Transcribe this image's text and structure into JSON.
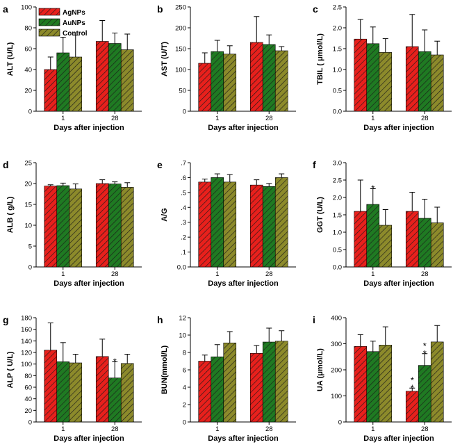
{
  "series_info": [
    {
      "name": "AgNPs",
      "color": "#e8201c"
    },
    {
      "name": "AuNPs",
      "color": "#1f7a22"
    },
    {
      "name": "Control",
      "color": "#8c8a2b"
    }
  ],
  "xlabel": "Days after injection",
  "categories": [
    "1",
    "28"
  ],
  "chart_data": [
    {
      "type": "bar",
      "letter": "a",
      "ylabel": "ALT (U/L)",
      "ylim": [
        0,
        100
      ],
      "ticks": [
        "0",
        "20",
        "40",
        "60",
        "80",
        "100"
      ],
      "tick_values": [
        0,
        20,
        40,
        60,
        80,
        100
      ],
      "series": [
        {
          "name": "AgNPs",
          "values": [
            40,
            67
          ],
          "errors": [
            12,
            20
          ]
        },
        {
          "name": "AuNPs",
          "values": [
            56,
            65
          ],
          "errors": [
            15,
            10
          ]
        },
        {
          "name": "Control",
          "values": [
            52,
            59
          ],
          "errors": [
            21,
            15
          ]
        }
      ],
      "annotations": []
    },
    {
      "type": "bar",
      "letter": "b",
      "ylabel": "AST (U/T)",
      "ylim": [
        0,
        250
      ],
      "ticks": [
        "0",
        "50",
        "100",
        "150",
        "200",
        "250"
      ],
      "tick_values": [
        0,
        50,
        100,
        150,
        200,
        250
      ],
      "series": [
        {
          "name": "AgNPs",
          "values": [
            115,
            165
          ],
          "errors": [
            25,
            62
          ]
        },
        {
          "name": "AuNPs",
          "values": [
            143,
            160
          ],
          "errors": [
            27,
            23
          ]
        },
        {
          "name": "Control",
          "values": [
            137,
            145
          ],
          "errors": [
            20,
            10
          ]
        }
      ],
      "annotations": []
    },
    {
      "type": "bar",
      "letter": "c",
      "ylabel": "TBIL ( μmol/L)",
      "ylim": [
        0,
        2.5
      ],
      "ticks": [
        "0.0",
        "0.5",
        "1.0",
        "1.5",
        "2.0",
        "2.5"
      ],
      "tick_values": [
        0,
        0.5,
        1,
        1.5,
        2,
        2.5
      ],
      "series": [
        {
          "name": "AgNPs",
          "values": [
            1.73,
            1.55
          ],
          "errors": [
            0.47,
            0.77
          ]
        },
        {
          "name": "AuNPs",
          "values": [
            1.62,
            1.43
          ],
          "errors": [
            0.4,
            0.52
          ]
        },
        {
          "name": "Control",
          "values": [
            1.41,
            1.35
          ],
          "errors": [
            0.33,
            0.33
          ]
        }
      ],
      "annotations": []
    },
    {
      "type": "bar",
      "letter": "d",
      "ylabel": "ALB ( g/L)",
      "ylim": [
        0,
        25
      ],
      "ticks": [
        "0",
        "5",
        "10",
        "15",
        "20",
        "25"
      ],
      "tick_values": [
        0,
        5,
        10,
        15,
        20,
        25
      ],
      "series": [
        {
          "name": "AgNPs",
          "values": [
            19.4,
            20.0
          ],
          "errors": [
            0.3,
            0.9
          ]
        },
        {
          "name": "AuNPs",
          "values": [
            19.5,
            19.9
          ],
          "errors": [
            0.6,
            0.5
          ]
        },
        {
          "name": "Control",
          "values": [
            18.7,
            19.1
          ],
          "errors": [
            1.2,
            1.1
          ]
        }
      ],
      "annotations": []
    },
    {
      "type": "bar",
      "letter": "e",
      "ylabel": "A/G",
      "ylim": [
        0,
        0.7
      ],
      "ticks": [
        "0.0",
        ".1",
        ".2",
        ".3",
        ".4",
        ".5",
        ".6",
        ".7"
      ],
      "tick_values": [
        0,
        0.1,
        0.2,
        0.3,
        0.4,
        0.5,
        0.6,
        0.7
      ],
      "series": [
        {
          "name": "AgNPs",
          "values": [
            0.57,
            0.55
          ],
          "errors": [
            0.02,
            0.035
          ]
        },
        {
          "name": "AuNPs",
          "values": [
            0.6,
            0.54
          ],
          "errors": [
            0.025,
            0.02
          ]
        },
        {
          "name": "Control",
          "values": [
            0.57,
            0.6
          ],
          "errors": [
            0.05,
            0.025
          ]
        }
      ],
      "annotations": []
    },
    {
      "type": "bar",
      "letter": "f",
      "ylabel": "GGT (U/L)",
      "ylim": [
        0,
        3.0
      ],
      "ticks": [
        "0.0",
        "0.5",
        "1.0",
        "1.5",
        "2.0",
        "2.5",
        "3.0"
      ],
      "tick_values": [
        0,
        0.5,
        1,
        1.5,
        2,
        2.5,
        3
      ],
      "series": [
        {
          "name": "AgNPs",
          "values": [
            1.6,
            1.6
          ],
          "errors": [
            0.9,
            0.55
          ]
        },
        {
          "name": "AuNPs",
          "values": [
            1.8,
            1.4
          ],
          "errors": [
            0.45,
            0.55
          ]
        },
        {
          "name": "Control",
          "values": [
            1.2,
            1.27
          ],
          "errors": [
            0.45,
            0.45
          ]
        }
      ],
      "annotations": [
        {
          "text": "*",
          "category": 0,
          "series": 1
        }
      ]
    },
    {
      "type": "bar",
      "letter": "g",
      "ylabel": "ALP ( U/L)",
      "ylim": [
        0,
        180
      ],
      "ticks": [
        "0",
        "20",
        "40",
        "60",
        "80",
        "100",
        "120",
        "140",
        "160",
        "180"
      ],
      "tick_values": [
        0,
        20,
        40,
        60,
        80,
        100,
        120,
        140,
        160,
        180
      ],
      "series": [
        {
          "name": "AgNPs",
          "values": [
            124,
            113
          ],
          "errors": [
            47,
            30
          ]
        },
        {
          "name": "AuNPs",
          "values": [
            104,
            76
          ],
          "errors": [
            33,
            28
          ]
        },
        {
          "name": "Control",
          "values": [
            102,
            101
          ],
          "errors": [
            15,
            16
          ]
        }
      ],
      "annotations": [
        {
          "text": "*",
          "category": 1,
          "series": 1
        }
      ]
    },
    {
      "type": "bar",
      "letter": "h",
      "ylabel": "BUN(mmol/L)",
      "ylim": [
        0,
        12
      ],
      "ticks": [
        "0",
        "2",
        "4",
        "6",
        "8",
        "10",
        "12"
      ],
      "tick_values": [
        0,
        2,
        4,
        6,
        8,
        10,
        12
      ],
      "series": [
        {
          "name": "AgNPs",
          "values": [
            7.0,
            7.9
          ],
          "errors": [
            0.7,
            0.9
          ]
        },
        {
          "name": "AuNPs",
          "values": [
            7.5,
            9.2
          ],
          "errors": [
            1.4,
            1.6
          ]
        },
        {
          "name": "Control",
          "values": [
            9.1,
            9.3
          ],
          "errors": [
            1.3,
            1.2
          ]
        }
      ],
      "annotations": []
    },
    {
      "type": "bar",
      "letter": "i",
      "ylabel": "UA (μmol/L)",
      "ylim": [
        0,
        400
      ],
      "ticks": [
        "0",
        "100",
        "200",
        "300",
        "400"
      ],
      "tick_values": [
        0,
        100,
        200,
        300,
        400
      ],
      "series": [
        {
          "name": "AgNPs",
          "values": [
            290,
            118
          ],
          "errors": [
            45,
            12
          ]
        },
        {
          "name": "AuNPs",
          "values": [
            270,
            217
          ],
          "errors": [
            40,
            45
          ]
        },
        {
          "name": "Control",
          "values": [
            295,
            307
          ],
          "errors": [
            70,
            63
          ]
        }
      ],
      "annotations": [
        {
          "text": "*",
          "category": 1,
          "series": 0,
          "offset": 2
        },
        {
          "text": "*",
          "category": 1,
          "series": 0,
          "offset": 1
        },
        {
          "text": "*",
          "category": 1,
          "series": 1,
          "offset": 2
        },
        {
          "text": "*",
          "category": 1,
          "series": 1,
          "offset": 1
        }
      ]
    }
  ]
}
